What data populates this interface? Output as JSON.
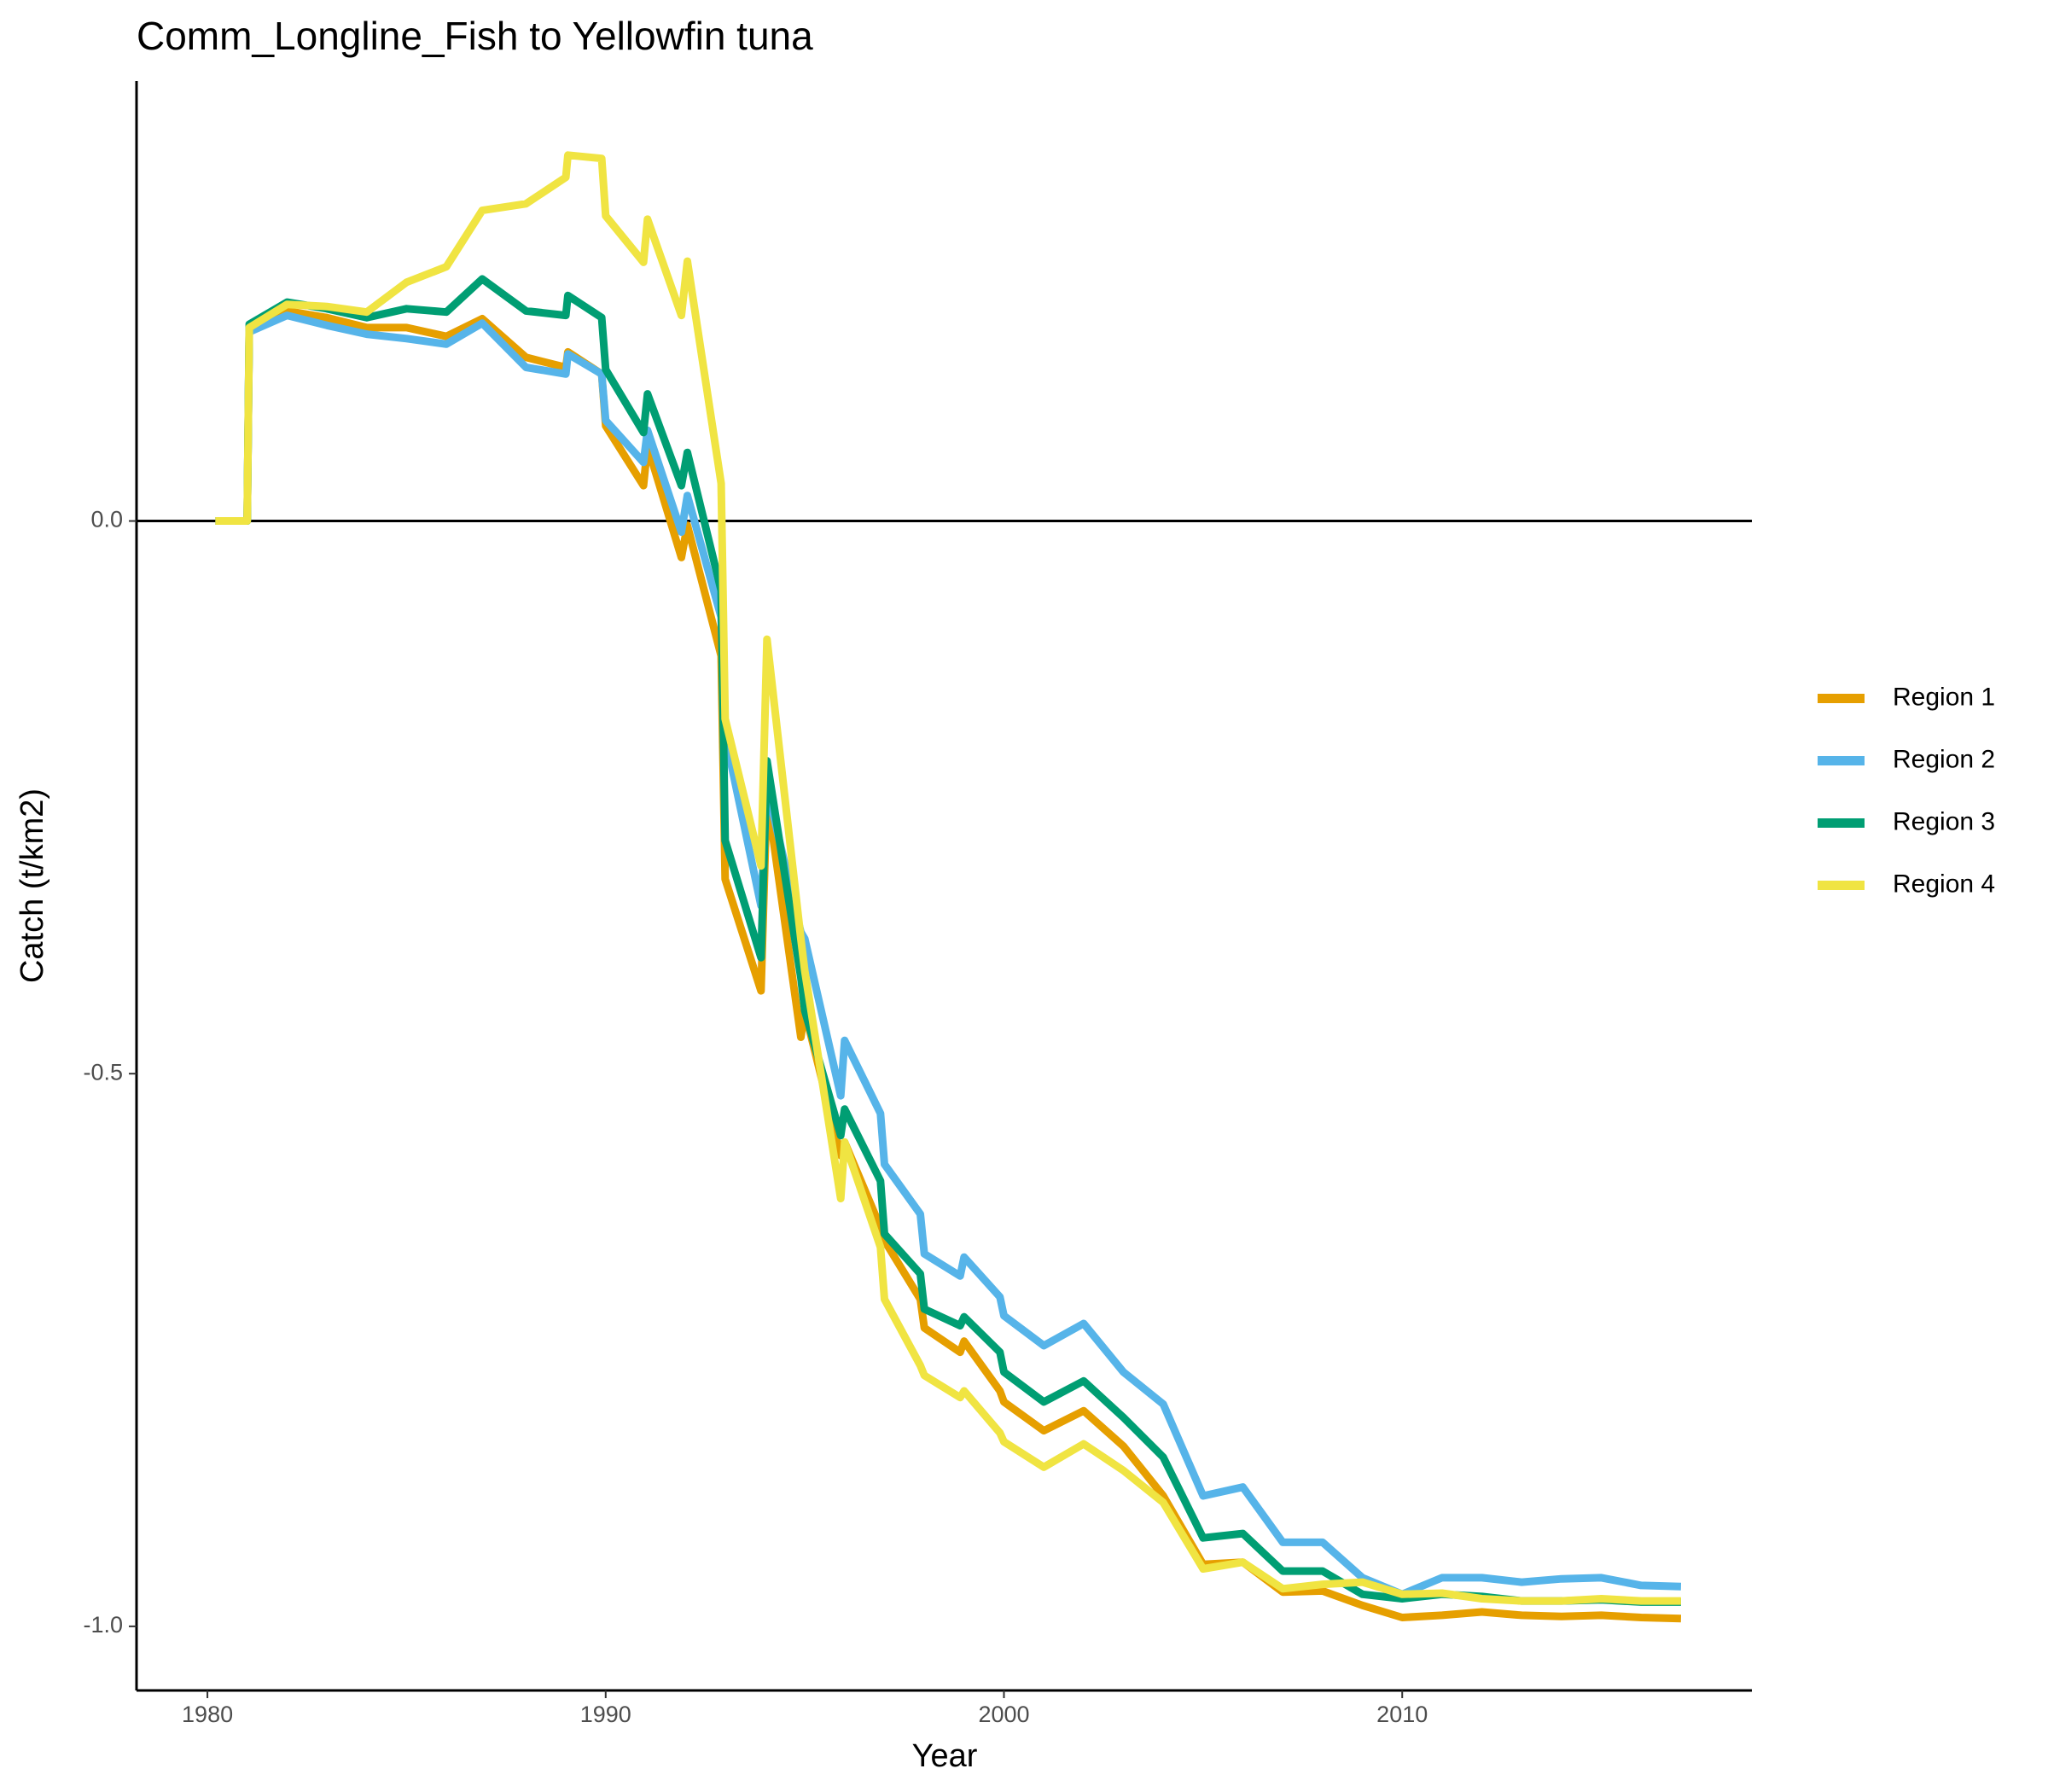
{
  "chart_data": {
    "type": "line",
    "title": "Comm_Longline_Fish to Yellowfin tuna",
    "x_label": "Year",
    "y_label": "Catch (t/km2)",
    "x": [
      1980.2,
      1981,
      1981.05,
      1982,
      1983,
      1984,
      1985,
      1986,
      1986.9,
      1988,
      1989,
      1989.05,
      1989.9,
      1990,
      1990.95,
      1991.05,
      1991.9,
      1992.05,
      1992.9,
      1993,
      1993.9,
      1994.05,
      1994.9,
      1995,
      1995.9,
      1996,
      1996.9,
      1997,
      1997.9,
      1998,
      1998.9,
      1999,
      1999.9,
      2000,
      2001,
      2002,
      2003,
      2004,
      2005,
      2006,
      2007,
      2008,
      2009,
      2010,
      2011,
      2012,
      2013,
      2014,
      2015,
      2016,
      2017
    ],
    "series": [
      {
        "name": "Region 1",
        "color": "#e69f00",
        "values": [
          0,
          0,
          0.175,
          0.19,
          0.184,
          0.175,
          0.175,
          0.167,
          0.183,
          0.148,
          0.139,
          0.153,
          0.133,
          0.086,
          0.032,
          0.068,
          -0.033,
          -0.004,
          -0.122,
          -0.324,
          -0.425,
          -0.247,
          -0.467,
          -0.443,
          -0.574,
          -0.562,
          -0.639,
          -0.651,
          -0.704,
          -0.73,
          -0.752,
          -0.742,
          -0.787,
          -0.797,
          -0.823,
          -0.805,
          -0.837,
          -0.882,
          -0.944,
          -0.942,
          -0.969,
          -0.968,
          -0.981,
          -0.992,
          -0.99,
          -0.987,
          -0.99,
          -0.991,
          -0.99,
          -0.992,
          -0.993
        ]
      },
      {
        "name": "Region 2",
        "color": "#56b4e9",
        "values": [
          0,
          0,
          0.171,
          0.186,
          0.177,
          0.169,
          0.165,
          0.16,
          0.179,
          0.139,
          0.133,
          0.151,
          0.133,
          0.091,
          0.053,
          0.082,
          -0.01,
          0.023,
          -0.087,
          -0.194,
          -0.348,
          -0.241,
          -0.372,
          -0.378,
          -0.52,
          -0.47,
          -0.536,
          -0.582,
          -0.627,
          -0.663,
          -0.683,
          -0.666,
          -0.702,
          -0.719,
          -0.746,
          -0.726,
          -0.77,
          -0.799,
          -0.882,
          -0.874,
          -0.924,
          -0.924,
          -0.956,
          -0.971,
          -0.956,
          -0.956,
          -0.96,
          -0.957,
          -0.956,
          -0.963,
          -0.964
        ]
      },
      {
        "name": "Region 3",
        "color": "#009e73",
        "values": [
          0,
          0,
          0.178,
          0.198,
          0.192,
          0.184,
          0.192,
          0.189,
          0.219,
          0.19,
          0.186,
          0.204,
          0.184,
          0.137,
          0.08,
          0.115,
          0.032,
          0.062,
          -0.063,
          -0.289,
          -0.395,
          -0.217,
          -0.413,
          -0.443,
          -0.556,
          -0.532,
          -0.597,
          -0.645,
          -0.681,
          -0.713,
          -0.728,
          -0.72,
          -0.752,
          -0.77,
          -0.797,
          -0.778,
          -0.811,
          -0.847,
          -0.92,
          -0.916,
          -0.95,
          -0.95,
          -0.971,
          -0.975,
          -0.971,
          -0.973,
          -0.977,
          -0.977,
          -0.976,
          -0.978,
          -0.978
        ]
      },
      {
        "name": "Region 4",
        "color": "#f0e442",
        "values": [
          0,
          0,
          0.175,
          0.196,
          0.194,
          0.189,
          0.216,
          0.23,
          0.281,
          0.287,
          0.311,
          0.331,
          0.328,
          0.276,
          0.234,
          0.273,
          0.186,
          0.235,
          0.034,
          -0.179,
          -0.312,
          -0.107,
          -0.378,
          -0.407,
          -0.613,
          -0.562,
          -0.657,
          -0.704,
          -0.764,
          -0.773,
          -0.793,
          -0.787,
          -0.825,
          -0.833,
          -0.856,
          -0.835,
          -0.859,
          -0.888,
          -0.948,
          -0.942,
          -0.966,
          -0.962,
          -0.96,
          -0.971,
          -0.97,
          -0.975,
          -0.977,
          -0.977,
          -0.975,
          -0.977,
          -0.977
        ]
      }
    ],
    "xlim": [
      1978.22,
      2018.78
    ],
    "ylim": [
      -1.058,
      0.398
    ],
    "xticks": [
      1980,
      1990,
      2000,
      2010
    ],
    "yticks": [
      {
        "value": -1,
        "label": "-1.0"
      },
      {
        "value": -0.5,
        "label": "-0.5"
      },
      {
        "value": 0,
        "label": "0.0"
      }
    ],
    "hline": 0,
    "legend": "right"
  }
}
